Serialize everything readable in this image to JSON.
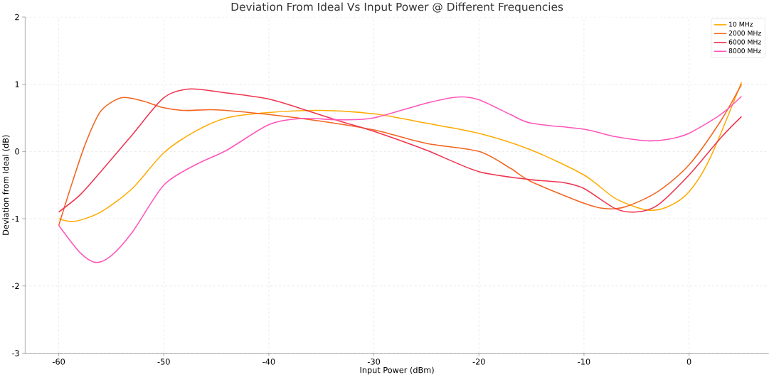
{
  "chart_data": {
    "type": "line",
    "title": "Deviation From Ideal Vs Input Power @ Different Frequencies",
    "xlabel": "Input Power (dBm)",
    "ylabel": "Deviation from Ideal (dB)",
    "xlim": [
      -63.2,
      7.6
    ],
    "ylim": [
      -3,
      2
    ],
    "xticks": [
      -60,
      -50,
      -40,
      -30,
      -20,
      -10,
      0
    ],
    "yticks": [
      -3,
      -2,
      -1,
      0,
      1,
      2
    ],
    "grid": true,
    "legend": "top right",
    "line_style": "solid",
    "marker": "none",
    "series": [
      {
        "name": "10 MHz",
        "color": "#ffaa00",
        "x": [
          -60,
          -58.5,
          -56,
          -53,
          -50,
          -47,
          -44,
          -40,
          -35,
          -30,
          -25,
          -20,
          -15,
          -10,
          -7,
          -4,
          -2,
          0,
          2,
          5
        ],
        "values": [
          -1.0,
          -1.04,
          -0.9,
          -0.55,
          -0.02,
          0.3,
          0.5,
          0.58,
          0.61,
          0.56,
          0.42,
          0.27,
          0.02,
          -0.35,
          -0.7,
          -0.87,
          -0.82,
          -0.6,
          -0.1,
          1.03
        ]
      },
      {
        "name": "2000 MHz",
        "color": "#f26522",
        "x": [
          -60,
          -59,
          -57.5,
          -56,
          -54,
          -52,
          -50,
          -48,
          -45,
          -40,
          -35,
          -30,
          -25,
          -20,
          -17,
          -15,
          -10,
          -8,
          -6,
          -3,
          0,
          3,
          5
        ],
        "values": [
          -1.1,
          -0.6,
          0.1,
          0.6,
          0.8,
          0.75,
          0.65,
          0.61,
          0.62,
          0.55,
          0.45,
          0.32,
          0.12,
          0.0,
          -0.25,
          -0.45,
          -0.77,
          -0.85,
          -0.82,
          -0.6,
          -0.2,
          0.45,
          1.0
        ]
      },
      {
        "name": "6000 MHz",
        "color": "#f0334e",
        "x": [
          -60,
          -58,
          -56,
          -53,
          -50,
          -47.5,
          -44,
          -40,
          -37,
          -33,
          -30,
          -25,
          -20,
          -15,
          -12,
          -10,
          -7,
          -5,
          -3,
          0,
          3,
          5
        ],
        "values": [
          -0.9,
          -0.65,
          -0.3,
          0.25,
          0.8,
          0.93,
          0.87,
          0.78,
          0.64,
          0.44,
          0.3,
          0.02,
          -0.3,
          -0.42,
          -0.46,
          -0.55,
          -0.85,
          -0.9,
          -0.8,
          -0.35,
          0.2,
          0.52
        ]
      },
      {
        "name": "8000 MHz",
        "color": "#ff55bb",
        "x": [
          -60,
          -58,
          -56.5,
          -55,
          -53,
          -50,
          -47,
          -44,
          -40,
          -37,
          -33,
          -30,
          -25,
          -22,
          -20,
          -17,
          -15,
          -10,
          -7,
          -4,
          -2,
          0,
          3,
          5
        ],
        "values": [
          -1.1,
          -1.5,
          -1.65,
          -1.55,
          -1.2,
          -0.5,
          -0.2,
          0.02,
          0.4,
          0.49,
          0.47,
          0.5,
          0.72,
          0.81,
          0.77,
          0.55,
          0.42,
          0.33,
          0.22,
          0.16,
          0.18,
          0.27,
          0.55,
          0.82
        ]
      }
    ]
  }
}
